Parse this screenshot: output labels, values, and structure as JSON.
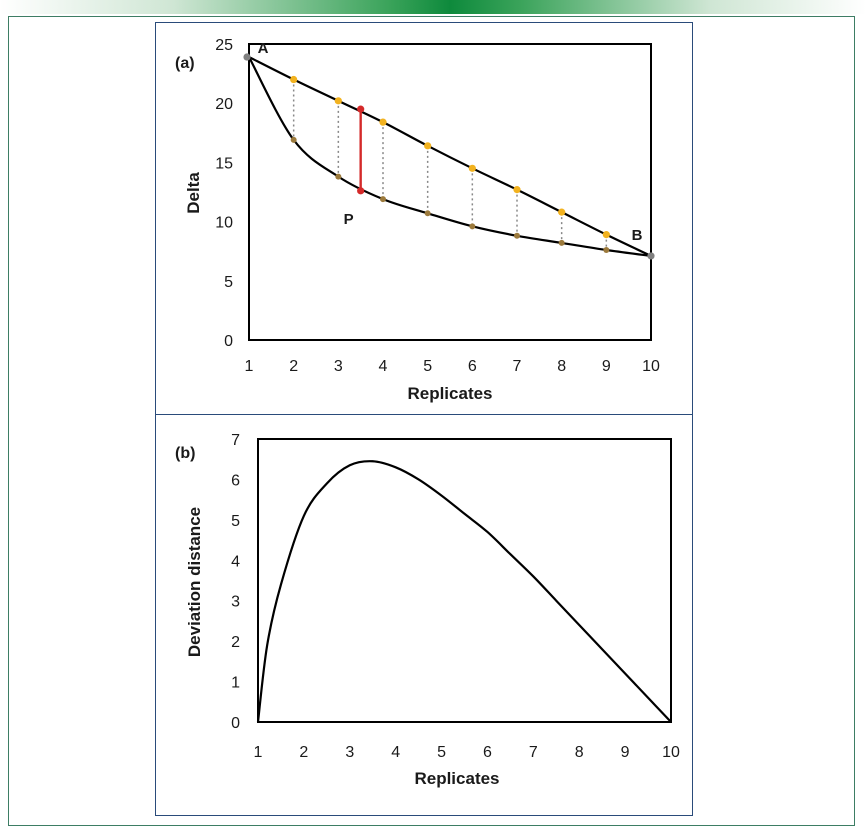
{
  "chart_data": [
    {
      "type": "line",
      "panel_label": "(a)",
      "xlabel": "Replicates",
      "ylabel": "Delta",
      "xlim": [
        1,
        10
      ],
      "ylim": [
        0,
        25
      ],
      "x_ticks": [
        1,
        2,
        3,
        4,
        5,
        6,
        7,
        8,
        9,
        10
      ],
      "y_ticks": [
        0,
        5,
        10,
        15,
        20,
        25
      ],
      "grid": false,
      "series": [
        {
          "x": [
            1,
            2,
            3,
            4,
            5,
            6,
            7,
            8,
            9,
            10
          ],
          "y": [
            23.9,
            22.0,
            20.2,
            18.4,
            16.4,
            14.5,
            12.7,
            10.8,
            8.9,
            7.1
          ]
        },
        {
          "x": [
            1,
            2,
            3,
            4,
            5,
            6,
            7,
            8,
            9,
            10
          ],
          "y": [
            23.9,
            16.9,
            13.8,
            11.9,
            10.7,
            9.6,
            8.8,
            8.2,
            7.6,
            7.1
          ]
        }
      ],
      "highlight_segment": {
        "x": 3.5,
        "y_top": 19.5,
        "y_bottom": 12.6,
        "color": "#d42a2a"
      },
      "annotations": [
        {
          "text": "A",
          "x": 1,
          "y": 23.9
        },
        {
          "text": "B",
          "x": 10,
          "y": 7.1
        },
        {
          "text": "P",
          "x": 3.5,
          "y": 12.6
        }
      ],
      "colors": {
        "line": "#000000",
        "upper_marker": "#f2b21f",
        "lower_marker": "#9c7a3c",
        "endpoint": "#808080",
        "connector": "#888888"
      }
    },
    {
      "type": "line",
      "panel_label": "(b)",
      "xlabel": "Replicates",
      "ylabel": "Deviation distance",
      "xlim": [
        1,
        10
      ],
      "ylim": [
        0,
        7
      ],
      "x_ticks": [
        1,
        2,
        3,
        4,
        5,
        6,
        7,
        8,
        9,
        10
      ],
      "y_ticks": [
        0,
        1,
        2,
        3,
        4,
        5,
        6,
        7
      ],
      "grid": false,
      "series": [
        {
          "x": [
            1,
            1.2,
            1.5,
            2,
            2.5,
            3,
            3.5,
            4,
            4.5,
            5,
            5.5,
            6,
            6.5,
            7,
            7.5,
            8,
            8.5,
            9,
            9.5,
            10
          ],
          "y": [
            0,
            1.9,
            3.4,
            5.1,
            5.9,
            6.35,
            6.45,
            6.3,
            6.0,
            5.6,
            5.15,
            4.7,
            4.15,
            3.6,
            3.0,
            2.4,
            1.8,
            1.2,
            0.6,
            0
          ]
        }
      ]
    }
  ]
}
